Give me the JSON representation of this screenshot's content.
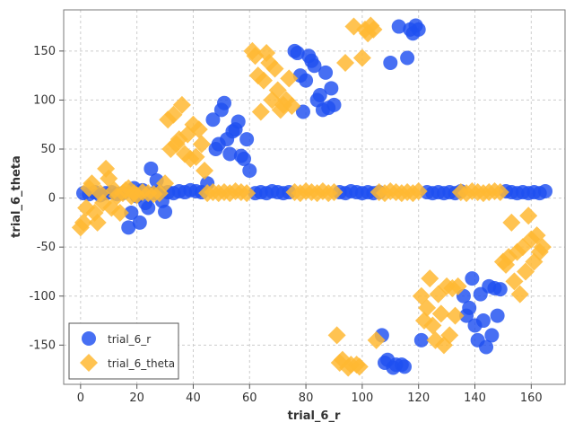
{
  "chart_data": {
    "type": "scatter",
    "title": "",
    "xlabel": "trial_6_r",
    "ylabel": "trial_6_theta",
    "xlim": [
      -6,
      172
    ],
    "ylim": [
      -190,
      192
    ],
    "xticks": [
      0,
      20,
      40,
      60,
      80,
      100,
      120,
      140,
      160
    ],
    "yticks": [
      -150,
      -100,
      -50,
      0,
      50,
      100,
      150
    ],
    "grid": true,
    "legend_position": "bottom-left",
    "series": [
      {
        "name": "trial_6_r",
        "marker": "circle",
        "color": "#1f4ff0",
        "points": [
          [
            1,
            5
          ],
          [
            3,
            4
          ],
          [
            5,
            6
          ],
          [
            7,
            3
          ],
          [
            9,
            5
          ],
          [
            11,
            6
          ],
          [
            13,
            4
          ],
          [
            15,
            5
          ],
          [
            17,
            -30
          ],
          [
            18,
            -15
          ],
          [
            19,
            10
          ],
          [
            20,
            2
          ],
          [
            21,
            -25
          ],
          [
            22,
            8
          ],
          [
            23,
            -5
          ],
          [
            24,
            -10
          ],
          [
            25,
            30
          ],
          [
            26,
            5
          ],
          [
            27,
            18
          ],
          [
            28,
            6
          ],
          [
            29,
            -3
          ],
          [
            30,
            -14
          ],
          [
            31,
            6
          ],
          [
            33,
            5
          ],
          [
            35,
            7
          ],
          [
            37,
            6
          ],
          [
            39,
            8
          ],
          [
            41,
            7
          ],
          [
            43,
            6
          ],
          [
            45,
            15
          ],
          [
            47,
            80
          ],
          [
            48,
            50
          ],
          [
            49,
            55
          ],
          [
            50,
            90
          ],
          [
            51,
            97
          ],
          [
            52,
            60
          ],
          [
            53,
            45
          ],
          [
            54,
            68
          ],
          [
            55,
            70
          ],
          [
            56,
            78
          ],
          [
            57,
            43
          ],
          [
            58,
            40
          ],
          [
            59,
            60
          ],
          [
            60,
            28
          ],
          [
            62,
            5
          ],
          [
            64,
            6
          ],
          [
            66,
            5
          ],
          [
            68,
            7
          ],
          [
            70,
            6
          ],
          [
            72,
            5
          ],
          [
            74,
            6
          ],
          [
            76,
            150
          ],
          [
            77,
            148
          ],
          [
            78,
            125
          ],
          [
            79,
            88
          ],
          [
            80,
            120
          ],
          [
            81,
            145
          ],
          [
            82,
            140
          ],
          [
            83,
            135
          ],
          [
            84,
            100
          ],
          [
            85,
            105
          ],
          [
            86,
            90
          ],
          [
            87,
            128
          ],
          [
            88,
            92
          ],
          [
            89,
            112
          ],
          [
            90,
            95
          ],
          [
            92,
            6
          ],
          [
            94,
            5
          ],
          [
            96,
            7
          ],
          [
            98,
            6
          ],
          [
            100,
            5
          ],
          [
            102,
            6
          ],
          [
            104,
            5
          ],
          [
            106,
            6
          ],
          [
            107,
            -140
          ],
          [
            108,
            -168
          ],
          [
            109,
            -165
          ],
          [
            110,
            138
          ],
          [
            111,
            -173
          ],
          [
            112,
            -170
          ],
          [
            113,
            175
          ],
          [
            114,
            -170
          ],
          [
            115,
            -172
          ],
          [
            116,
            143
          ],
          [
            117,
            172
          ],
          [
            118,
            168
          ],
          [
            119,
            176
          ],
          [
            120,
            172
          ],
          [
            121,
            -145
          ],
          [
            123,
            6
          ],
          [
            125,
            5
          ],
          [
            127,
            6
          ],
          [
            129,
            5
          ],
          [
            131,
            6
          ],
          [
            133,
            5
          ],
          [
            135,
            7
          ],
          [
            136,
            -100
          ],
          [
            137,
            -120
          ],
          [
            138,
            -112
          ],
          [
            139,
            -82
          ],
          [
            140,
            -130
          ],
          [
            141,
            -145
          ],
          [
            142,
            -98
          ],
          [
            143,
            -125
          ],
          [
            144,
            -152
          ],
          [
            145,
            -90
          ],
          [
            146,
            -140
          ],
          [
            147,
            -92
          ],
          [
            148,
            -120
          ],
          [
            149,
            -93
          ],
          [
            151,
            7
          ],
          [
            153,
            6
          ],
          [
            155,
            5
          ],
          [
            157,
            6
          ],
          [
            159,
            5
          ],
          [
            161,
            6
          ],
          [
            163,
            5
          ],
          [
            165,
            7
          ]
        ]
      },
      {
        "name": "trial_6_theta",
        "marker": "diamond",
        "color": "#ffb833",
        "points": [
          [
            0,
            -30
          ],
          [
            1,
            -25
          ],
          [
            2,
            -10
          ],
          [
            3,
            10
          ],
          [
            4,
            15
          ],
          [
            5,
            -15
          ],
          [
            6,
            -25
          ],
          [
            7,
            5
          ],
          [
            8,
            -5
          ],
          [
            9,
            30
          ],
          [
            10,
            20
          ],
          [
            11,
            -10
          ],
          [
            12,
            8
          ],
          [
            13,
            2
          ],
          [
            14,
            -15
          ],
          [
            15,
            5
          ],
          [
            16,
            8
          ],
          [
            17,
            10
          ],
          [
            18,
            2
          ],
          [
            19,
            5
          ],
          [
            20,
            3
          ],
          [
            22,
            6
          ],
          [
            24,
            5
          ],
          [
            26,
            4
          ],
          [
            28,
            5
          ],
          [
            30,
            15
          ],
          [
            31,
            80
          ],
          [
            32,
            50
          ],
          [
            33,
            85
          ],
          [
            34,
            55
          ],
          [
            35,
            60
          ],
          [
            36,
            95
          ],
          [
            37,
            45
          ],
          [
            38,
            65
          ],
          [
            39,
            40
          ],
          [
            40,
            75
          ],
          [
            41,
            42
          ],
          [
            42,
            70
          ],
          [
            43,
            55
          ],
          [
            44,
            28
          ],
          [
            45,
            5
          ],
          [
            47,
            6
          ],
          [
            49,
            5
          ],
          [
            51,
            6
          ],
          [
            53,
            5
          ],
          [
            55,
            7
          ],
          [
            57,
            6
          ],
          [
            59,
            5
          ],
          [
            61,
            150
          ],
          [
            62,
            145
          ],
          [
            63,
            125
          ],
          [
            64,
            88
          ],
          [
            65,
            120
          ],
          [
            66,
            148
          ],
          [
            67,
            138
          ],
          [
            68,
            100
          ],
          [
            69,
            132
          ],
          [
            70,
            110
          ],
          [
            71,
            90
          ],
          [
            72,
            95
          ],
          [
            73,
            100
          ],
          [
            74,
            122
          ],
          [
            75,
            94
          ],
          [
            76,
            6
          ],
          [
            78,
            5
          ],
          [
            80,
            7
          ],
          [
            82,
            6
          ],
          [
            84,
            5
          ],
          [
            86,
            7
          ],
          [
            88,
            5
          ],
          [
            90,
            6
          ],
          [
            91,
            -140
          ],
          [
            92,
            -168
          ],
          [
            93,
            -165
          ],
          [
            94,
            138
          ],
          [
            95,
            -173
          ],
          [
            96,
            -170
          ],
          [
            97,
            175
          ],
          [
            98,
            -170
          ],
          [
            99,
            -172
          ],
          [
            100,
            143
          ],
          [
            101,
            172
          ],
          [
            102,
            168
          ],
          [
            103,
            176
          ],
          [
            104,
            172
          ],
          [
            105,
            -145
          ],
          [
            106,
            6
          ],
          [
            108,
            5
          ],
          [
            110,
            7
          ],
          [
            112,
            6
          ],
          [
            114,
            5
          ],
          [
            116,
            6
          ],
          [
            118,
            5
          ],
          [
            120,
            7
          ],
          [
            121,
            -100
          ],
          [
            122,
            -125
          ],
          [
            123,
            -112
          ],
          [
            124,
            -82
          ],
          [
            125,
            -130
          ],
          [
            126,
            -145
          ],
          [
            127,
            -98
          ],
          [
            128,
            -118
          ],
          [
            129,
            -150
          ],
          [
            130,
            -90
          ],
          [
            131,
            -140
          ],
          [
            132,
            -92
          ],
          [
            133,
            -120
          ],
          [
            134,
            -90
          ],
          [
            135,
            6
          ],
          [
            137,
            5
          ],
          [
            139,
            7
          ],
          [
            141,
            6
          ],
          [
            143,
            5
          ],
          [
            145,
            6
          ],
          [
            147,
            7
          ],
          [
            149,
            6
          ],
          [
            150,
            -65
          ],
          [
            151,
            -68
          ],
          [
            152,
            -60
          ],
          [
            153,
            -25
          ],
          [
            154,
            -85
          ],
          [
            155,
            -55
          ],
          [
            156,
            -98
          ],
          [
            157,
            -50
          ],
          [
            158,
            -75
          ],
          [
            159,
            -18
          ],
          [
            160,
            -42
          ],
          [
            161,
            -65
          ],
          [
            162,
            -38
          ],
          [
            163,
            -55
          ],
          [
            164,
            -50
          ]
        ]
      }
    ]
  }
}
